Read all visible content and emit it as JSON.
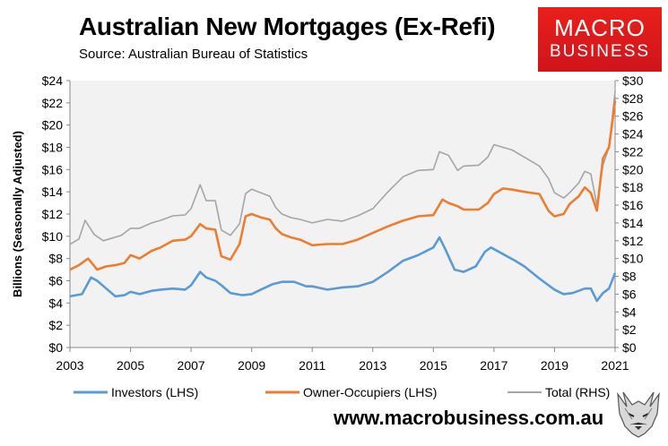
{
  "header": {
    "title": "Australian New Mortgages (Ex-Refi)",
    "subtitle": "Source: Australian Bureau of Statistics"
  },
  "logo": {
    "line1": "MACRO",
    "line2": "BUSINESS"
  },
  "footer": {
    "website": "www.macrobusiness.com.au",
    "wolf_icon": "wolf-logo-icon"
  },
  "colors": {
    "investors": "#5b9bd5",
    "owner_occupiers": "#ed7d31",
    "total": "#a5a5a5",
    "plot_bg": "#f2f2f2",
    "logo_red": "#e8201a"
  },
  "chart_data": {
    "type": "line",
    "ylabel": "Billions (Seasonally Adjusted)",
    "xlim": [
      2003,
      2021
    ],
    "ylim_left": [
      0,
      24
    ],
    "ylim_right": [
      0,
      30
    ],
    "x_ticks": [
      "2003",
      "2005",
      "2007",
      "2009",
      "2011",
      "2013",
      "2015",
      "2017",
      "2019",
      "2021"
    ],
    "y_ticks_left": [
      "$0",
      "$2",
      "$4",
      "$6",
      "$8",
      "$10",
      "$12",
      "$14",
      "$16",
      "$18",
      "$20",
      "$22",
      "$24"
    ],
    "y_ticks_right": [
      "$0",
      "$2",
      "$4",
      "$6",
      "$8",
      "$10",
      "$12",
      "$14",
      "$16",
      "$18",
      "$20",
      "$22",
      "$24",
      "$26",
      "$28",
      "$30"
    ],
    "legend_position": "bottom",
    "grid": false,
    "series": [
      {
        "name": "Investors (LHS)",
        "axis": "left",
        "x": [
          2003,
          2003.4,
          2003.7,
          2003.9,
          2004.2,
          2004.5,
          2004.8,
          2005.0,
          2005.3,
          2005.7,
          2006.0,
          2006.4,
          2006.8,
          2007.0,
          2007.3,
          2007.5,
          2007.8,
          2008.0,
          2008.3,
          2008.7,
          2009.0,
          2009.3,
          2009.7,
          2010.0,
          2010.4,
          2010.8,
          2011.0,
          2011.5,
          2012.0,
          2012.5,
          2013.0,
          2013.5,
          2014.0,
          2014.5,
          2015.0,
          2015.2,
          2015.4,
          2015.7,
          2016.0,
          2016.4,
          2016.7,
          2016.9,
          2017.3,
          2017.7,
          2018.0,
          2018.5,
          2019.0,
          2019.3,
          2019.6,
          2020.0,
          2020.2,
          2020.4,
          2020.6,
          2020.8,
          2021.0
        ],
        "values": [
          4.6,
          4.8,
          6.3,
          6.0,
          5.3,
          4.6,
          4.7,
          5.0,
          4.8,
          5.1,
          5.2,
          5.3,
          5.2,
          5.6,
          6.8,
          6.3,
          6.0,
          5.6,
          4.9,
          4.7,
          4.8,
          5.2,
          5.7,
          5.9,
          5.9,
          5.5,
          5.5,
          5.2,
          5.4,
          5.5,
          5.9,
          6.8,
          7.8,
          8.3,
          9.0,
          9.9,
          8.8,
          7.0,
          6.8,
          7.3,
          8.6,
          9.0,
          8.4,
          7.8,
          7.3,
          6.2,
          5.2,
          4.8,
          4.9,
          5.3,
          5.3,
          4.2,
          4.9,
          5.3,
          6.7
        ]
      },
      {
        "name": "Owner-Occupiers (LHS)",
        "axis": "left",
        "x": [
          2003,
          2003.3,
          2003.6,
          2003.9,
          2004.2,
          2004.5,
          2004.8,
          2005.0,
          2005.3,
          2005.7,
          2006.0,
          2006.4,
          2006.8,
          2007.0,
          2007.3,
          2007.5,
          2007.8,
          2008.0,
          2008.3,
          2008.6,
          2008.8,
          2009.0,
          2009.3,
          2009.6,
          2009.8,
          2010.0,
          2010.3,
          2010.6,
          2011.0,
          2011.5,
          2012.0,
          2012.5,
          2013.0,
          2013.5,
          2014.0,
          2014.5,
          2015.0,
          2015.3,
          2015.5,
          2015.8,
          2016.0,
          2016.5,
          2016.8,
          2017.0,
          2017.3,
          2017.6,
          2018.0,
          2018.5,
          2018.8,
          2019.0,
          2019.3,
          2019.5,
          2019.8,
          2020.0,
          2020.2,
          2020.4,
          2020.6,
          2020.8,
          2021.0
        ],
        "values": [
          7.0,
          7.4,
          8.0,
          7.0,
          7.3,
          7.4,
          7.6,
          8.3,
          8.0,
          8.7,
          9.0,
          9.6,
          9.7,
          10.0,
          11.1,
          10.7,
          10.6,
          8.2,
          7.9,
          9.3,
          11.8,
          12.0,
          11.7,
          11.5,
          10.7,
          10.2,
          9.9,
          9.7,
          9.2,
          9.3,
          9.3,
          9.7,
          10.3,
          10.9,
          11.4,
          11.8,
          11.9,
          13.3,
          13.0,
          12.7,
          12.4,
          12.4,
          13.0,
          13.8,
          14.3,
          14.2,
          14.0,
          13.8,
          12.3,
          11.8,
          12.0,
          12.9,
          13.6,
          14.4,
          13.9,
          12.3,
          17.0,
          18.0,
          22.2
        ]
      },
      {
        "name": "Total (RHS)",
        "axis": "right",
        "x": [
          2003,
          2003.3,
          2003.5,
          2003.8,
          2004.1,
          2004.4,
          2004.7,
          2005.0,
          2005.3,
          2005.7,
          2006.0,
          2006.4,
          2006.8,
          2007.0,
          2007.3,
          2007.5,
          2007.8,
          2008.0,
          2008.3,
          2008.6,
          2008.8,
          2009.0,
          2009.3,
          2009.6,
          2009.8,
          2010.0,
          2010.3,
          2010.6,
          2011.0,
          2011.5,
          2012.0,
          2012.5,
          2013.0,
          2013.5,
          2014.0,
          2014.5,
          2015.0,
          2015.2,
          2015.5,
          2015.8,
          2016.0,
          2016.5,
          2016.8,
          2017.0,
          2017.3,
          2017.6,
          2018.0,
          2018.5,
          2018.8,
          2019.0,
          2019.3,
          2019.5,
          2019.8,
          2020.0,
          2020.2,
          2020.4,
          2020.6,
          2020.8,
          2021.0
        ],
        "values": [
          11.6,
          12.2,
          14.3,
          12.7,
          12.0,
          12.3,
          12.6,
          13.4,
          13.4,
          14.0,
          14.3,
          14.8,
          14.9,
          15.6,
          18.3,
          16.5,
          16.5,
          13.2,
          12.6,
          13.9,
          17.3,
          17.8,
          17.4,
          17.0,
          15.7,
          15.0,
          14.6,
          14.4,
          14.0,
          14.4,
          14.2,
          14.8,
          15.6,
          17.5,
          19.2,
          19.9,
          20.0,
          22.0,
          21.6,
          19.9,
          20.4,
          20.5,
          21.4,
          22.8,
          22.5,
          22.2,
          21.4,
          20.4,
          19.0,
          17.4,
          16.8,
          17.4,
          18.5,
          19.8,
          19.5,
          16.0,
          20.5,
          22.5,
          28.8
        ]
      }
    ]
  }
}
